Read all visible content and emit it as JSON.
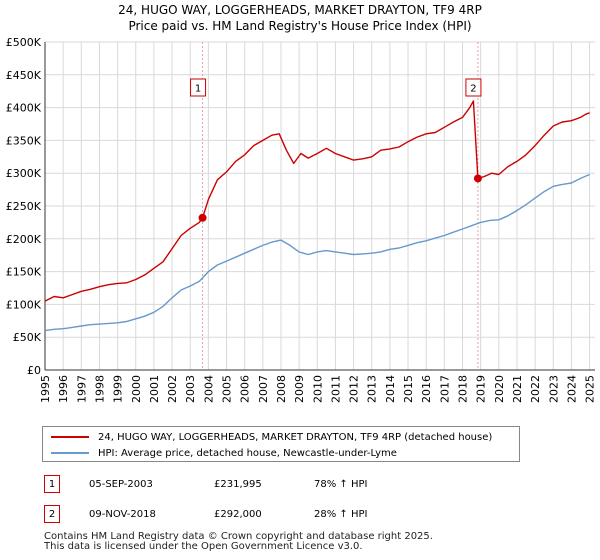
{
  "title_line1": "24, HUGO WAY, LOGGERHEADS, MARKET DRAYTON, TF9 4RP",
  "title_line2": "Price paid vs. HM Land Registry's House Price Index (HPI)",
  "colors": {
    "property": "#cc0000",
    "hpi": "#6699cc",
    "grid": "#d9d9d9",
    "marker_line": "#e8a0a8"
  },
  "chart_data": {
    "type": "line",
    "title": "Price paid vs. HM Land Registry's House Price Index (HPI)",
    "xlabel": "",
    "ylabel": "",
    "xlim": [
      1995,
      2025.3
    ],
    "ylim": [
      0,
      500000
    ],
    "x_ticks": [
      1995,
      1996,
      1997,
      1998,
      1999,
      2000,
      2001,
      2002,
      2003,
      2004,
      2005,
      2006,
      2007,
      2008,
      2009,
      2010,
      2011,
      2012,
      2013,
      2014,
      2015,
      2016,
      2017,
      2018,
      2019,
      2020,
      2021,
      2022,
      2023,
      2024,
      2025
    ],
    "y_ticks": [
      0,
      50000,
      100000,
      150000,
      200000,
      250000,
      300000,
      350000,
      400000,
      450000,
      500000
    ],
    "y_tick_labels": [
      "£0",
      "£50K",
      "£100K",
      "£150K",
      "£200K",
      "£250K",
      "£300K",
      "£350K",
      "£400K",
      "£450K",
      "£500K"
    ],
    "grid": true,
    "series": [
      {
        "name": "24, HUGO WAY, LOGGERHEADS, MARKET DRAYTON, TF9 4RP (detached house)",
        "color": "#cc0000",
        "x": [
          1995.0,
          1995.5,
          1996.0,
          1996.5,
          1997.0,
          1997.5,
          1998.0,
          1998.5,
          1999.0,
          1999.5,
          2000.0,
          2000.5,
          2001.0,
          2001.5,
          2002.0,
          2002.5,
          2003.0,
          2003.5,
          2003.68,
          2004.0,
          2004.5,
          2005.0,
          2005.5,
          2006.0,
          2006.5,
          2007.0,
          2007.5,
          2007.9,
          2008.3,
          2008.7,
          2009.1,
          2009.5,
          2010.0,
          2010.5,
          2011.0,
          2011.5,
          2012.0,
          2012.5,
          2013.0,
          2013.5,
          2014.0,
          2014.5,
          2015.0,
          2015.5,
          2016.0,
          2016.5,
          2017.0,
          2017.5,
          2018.0,
          2018.4,
          2018.6,
          2018.85,
          2019.2,
          2019.6,
          2020.0,
          2020.5,
          2021.0,
          2021.5,
          2022.0,
          2022.5,
          2023.0,
          2023.5,
          2024.0,
          2024.5,
          2024.8,
          2025.0
        ],
        "y": [
          105000,
          112000,
          110000,
          115000,
          120000,
          123000,
          127000,
          130000,
          132000,
          133000,
          138000,
          145000,
          155000,
          165000,
          185000,
          205000,
          216000,
          225000,
          231995,
          260000,
          290000,
          302000,
          318000,
          328000,
          342000,
          350000,
          358000,
          360000,
          335000,
          315000,
          330000,
          323000,
          330000,
          338000,
          330000,
          325000,
          320000,
          322000,
          325000,
          335000,
          337000,
          340000,
          348000,
          355000,
          360000,
          362000,
          370000,
          378000,
          385000,
          400000,
          410000,
          292000,
          295000,
          300000,
          298000,
          310000,
          318000,
          328000,
          342000,
          358000,
          372000,
          378000,
          380000,
          385000,
          390000,
          392000
        ]
      },
      {
        "name": "HPI: Average price, detached house, Newcastle-under-Lyme",
        "color": "#6699cc",
        "x": [
          1995.0,
          1995.5,
          1996.0,
          1996.5,
          1997.0,
          1997.5,
          1998.0,
          1998.5,
          1999.0,
          1999.5,
          2000.0,
          2000.5,
          2001.0,
          2001.5,
          2002.0,
          2002.5,
          2003.0,
          2003.5,
          2004.0,
          2004.5,
          2005.0,
          2005.5,
          2006.0,
          2006.5,
          2007.0,
          2007.5,
          2008.0,
          2008.5,
          2009.0,
          2009.5,
          2010.0,
          2010.5,
          2011.0,
          2011.5,
          2012.0,
          2012.5,
          2013.0,
          2013.5,
          2014.0,
          2014.5,
          2015.0,
          2015.5,
          2016.0,
          2016.5,
          2017.0,
          2017.5,
          2018.0,
          2018.5,
          2019.0,
          2019.5,
          2020.0,
          2020.5,
          2021.0,
          2021.5,
          2022.0,
          2022.5,
          2023.0,
          2023.5,
          2024.0,
          2024.5,
          2025.0
        ],
        "y": [
          60000,
          62000,
          63000,
          65000,
          67000,
          69000,
          70000,
          71000,
          72000,
          74000,
          78000,
          82000,
          88000,
          97000,
          110000,
          122000,
          128000,
          135000,
          150000,
          160000,
          166000,
          172000,
          178000,
          184000,
          190000,
          195000,
          198000,
          190000,
          180000,
          176000,
          180000,
          182000,
          180000,
          178000,
          176000,
          177000,
          178000,
          180000,
          184000,
          186000,
          190000,
          194000,
          197000,
          201000,
          205000,
          210000,
          215000,
          220000,
          225000,
          228000,
          229000,
          235000,
          243000,
          252000,
          262000,
          272000,
          280000,
          283000,
          285000,
          292000,
          298000
        ]
      }
    ],
    "markers": [
      {
        "label": "1",
        "x": 2003.68,
        "y": 231995
      },
      {
        "label": "2",
        "x": 2018.85,
        "y": 292000
      }
    ]
  },
  "legend": {
    "property_label": "24, HUGO WAY, LOGGERHEADS, MARKET DRAYTON, TF9 4RP (detached house)",
    "hpi_label": "HPI: Average price, detached house, Newcastle-under-Lyme"
  },
  "sales": [
    {
      "num": "1",
      "date": "05-SEP-2003",
      "price": "£231,995",
      "hpi_change": "78% ↑ HPI"
    },
    {
      "num": "2",
      "date": "09-NOV-2018",
      "price": "£292,000",
      "hpi_change": "28% ↑ HPI"
    }
  ],
  "footer_line1": "Contains HM Land Registry data © Crown copyright and database right 2025.",
  "footer_line2": "This data is licensed under the Open Government Licence v3.0."
}
